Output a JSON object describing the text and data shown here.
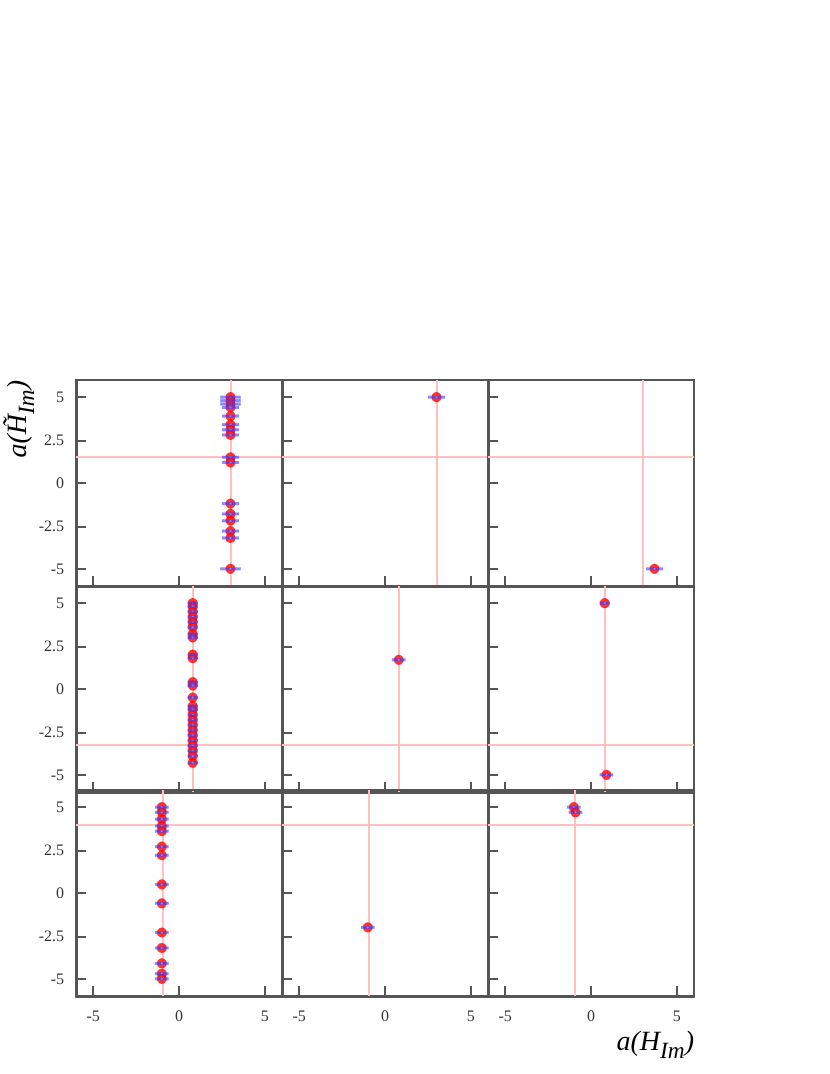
{
  "chart_data": [
    {
      "type": "scatter",
      "ylabel": "a(H̃$_{Im}$)",
      "marker": "circle",
      "grid": false,
      "tick_labels": "y",
      "xlim": [
        -6,
        6
      ],
      "ylim": [
        -6,
        6
      ],
      "xticks": [
        -5,
        0,
        5
      ],
      "yticks": [
        -5,
        -2.5,
        0,
        2.5,
        5
      ],
      "ref_lines": [
        {
          "axis": "x",
          "value": 3,
          "color": "#ffc0c0"
        },
        {
          "axis": "y",
          "value": 1.6,
          "color": "#ffc0c0"
        }
      ],
      "series": [
        {
          "color": "#ff0000",
          "x": [
            3,
            3,
            3,
            3,
            3,
            3,
            3,
            3,
            3,
            3,
            3,
            3,
            3,
            3,
            3,
            3
          ],
          "values": [
            5,
            4.8,
            4.6,
            4.4,
            3.9,
            3.4,
            3.1,
            2.8,
            1.5,
            1.2,
            -1.2,
            -1.8,
            -2.2,
            -2.8,
            -3.2,
            -5
          ],
          "xerrors": [
            0.6,
            0.6,
            0.6,
            0.5,
            0.5,
            0.5,
            0.5,
            0.5,
            0.5,
            0.5,
            0.5,
            0.5,
            0.5,
            0.5,
            0.5,
            0.6
          ]
        }
      ]
    },
    {
      "type": "scatter",
      "marker": "circle",
      "grid": false,
      "tick_labels": false,
      "xlim": [
        -6,
        6
      ],
      "ylim": [
        -6,
        6
      ],
      "xticks": [
        -5,
        0,
        5
      ],
      "yticks": [
        -5,
        -2.5,
        0,
        2.5,
        5
      ],
      "ref_lines": [
        {
          "axis": "x",
          "value": 3,
          "color": "#ffc0c0"
        },
        {
          "axis": "y",
          "value": 1.6,
          "color": "#ffc0c0"
        }
      ],
      "series": [
        {
          "color": "#ff0000",
          "x": [
            3
          ],
          "values": [
            5
          ],
          "xerrors": [
            0.5
          ]
        }
      ]
    },
    {
      "type": "scatter",
      "marker": "circle",
      "grid": false,
      "tick_labels": false,
      "xlim": [
        -6,
        6
      ],
      "ylim": [
        -6,
        6
      ],
      "xticks": [
        -5,
        0,
        5
      ],
      "yticks": [
        -5,
        -2.5,
        0,
        2.5,
        5
      ],
      "ref_lines": [
        {
          "axis": "x",
          "value": 3,
          "color": "#ffc0c0"
        },
        {
          "axis": "y",
          "value": 1.6,
          "color": "#ffc0c0"
        }
      ],
      "series": [
        {
          "color": "#ff0000",
          "x": [
            3.7
          ],
          "values": [
            -5
          ],
          "xerrors": [
            0.5
          ]
        }
      ]
    },
    {
      "type": "scatter",
      "marker": "circle",
      "grid": false,
      "tick_labels": "y",
      "xlim": [
        -6,
        6
      ],
      "ylim": [
        -6,
        6
      ],
      "xticks": [
        -5,
        0,
        5
      ],
      "yticks": [
        -5,
        -2.5,
        0,
        2.5,
        5
      ],
      "ref_lines": [
        {
          "axis": "x",
          "value": 0.8,
          "color": "#ffc0c0"
        },
        {
          "axis": "y",
          "value": -3.2,
          "color": "#ffc0c0"
        }
      ],
      "series": [
        {
          "color": "#ff0000",
          "x": [
            0.8,
            0.8,
            0.8,
            0.8,
            0.8,
            0.8,
            0.8,
            0.8,
            0.8,
            0.8,
            0.8,
            0.8,
            0.8,
            0.8,
            0.8,
            0.8,
            0.8,
            0.8,
            0.8,
            0.8,
            0.8,
            0.8,
            0.8,
            0.8,
            0.8
          ],
          "values": [
            5,
            4.8,
            4.5,
            4.2,
            3.9,
            3.6,
            3.2,
            3,
            2,
            1.8,
            0.4,
            0.2,
            -0.5,
            -1,
            -1.2,
            -1.5,
            -1.8,
            -2.1,
            -2.4,
            -2.7,
            -3,
            -3.3,
            -3.6,
            -3.9,
            -4.3
          ],
          "xerrors": [
            0.3,
            0.3,
            0.3,
            0.3,
            0.3,
            0.3,
            0.3,
            0.3,
            0.3,
            0.3,
            0.3,
            0.3,
            0.3,
            0.3,
            0.3,
            0.3,
            0.3,
            0.3,
            0.3,
            0.3,
            0.3,
            0.3,
            0.3,
            0.3,
            0.3
          ]
        }
      ]
    },
    {
      "type": "scatter",
      "marker": "circle",
      "grid": false,
      "tick_labels": false,
      "xlim": [
        -6,
        6
      ],
      "ylim": [
        -6,
        6
      ],
      "xticks": [
        -5,
        0,
        5
      ],
      "yticks": [
        -5,
        -2.5,
        0,
        2.5,
        5
      ],
      "ref_lines": [
        {
          "axis": "x",
          "value": 0.8,
          "color": "#ffc0c0"
        },
        {
          "axis": "y",
          "value": -3.2,
          "color": "#ffc0c0"
        }
      ],
      "series": [
        {
          "color": "#ff0000",
          "x": [
            0.8
          ],
          "values": [
            1.7
          ],
          "xerrors": [
            0.4
          ]
        }
      ]
    },
    {
      "type": "scatter",
      "marker": "circle",
      "grid": false,
      "tick_labels": false,
      "xlim": [
        -6,
        6
      ],
      "ylim": [
        -6,
        6
      ],
      "xticks": [
        -5,
        0,
        5
      ],
      "yticks": [
        -5,
        -2.5,
        0,
        2.5,
        5
      ],
      "ref_lines": [
        {
          "axis": "x",
          "value": 0.8,
          "color": "#ffc0c0"
        },
        {
          "axis": "y",
          "value": -3.2,
          "color": "#ffc0c0"
        }
      ],
      "series": [
        {
          "color": "#ff0000",
          "x": [
            0.8,
            0.9
          ],
          "values": [
            5,
            -5
          ],
          "xerrors": [
            0.3,
            0.4
          ]
        }
      ]
    },
    {
      "type": "scatter",
      "marker": "circle",
      "grid": false,
      "xlim": [
        -6,
        6
      ],
      "ylim": [
        -6,
        6
      ],
      "xticks": [
        -5,
        0,
        5
      ],
      "yticks": [
        -5,
        -2.5,
        0,
        2.5,
        5
      ],
      "ref_lines": [
        {
          "axis": "x",
          "value": -1,
          "color": "#ffc0c0"
        },
        {
          "axis": "y",
          "value": 4,
          "color": "#ffc0c0"
        }
      ],
      "series": [
        {
          "color": "#ff0000",
          "x": [
            -1,
            -1,
            -1,
            -1,
            -1,
            -1,
            -1,
            -1,
            -1,
            -1,
            -1,
            -1,
            -1,
            -1
          ],
          "values": [
            5,
            4.7,
            4.3,
            3.9,
            3.6,
            2.7,
            2.2,
            0.5,
            -0.6,
            -2.3,
            -3.2,
            -4.1,
            -4.7,
            -5
          ],
          "xerrors": [
            0.4,
            0.4,
            0.4,
            0.4,
            0.4,
            0.4,
            0.4,
            0.4,
            0.4,
            0.4,
            0.4,
            0.4,
            0.4,
            0.4
          ]
        }
      ]
    },
    {
      "type": "scatter",
      "marker": "circle",
      "grid": false,
      "tick_labels": "x",
      "xlim": [
        -6,
        6
      ],
      "ylim": [
        -6,
        6
      ],
      "xticks": [
        -5,
        0,
        5
      ],
      "yticks": [
        -5,
        -2.5,
        0,
        2.5,
        5
      ],
      "ref_lines": [
        {
          "axis": "x",
          "value": -1,
          "color": "#ffc0c0"
        },
        {
          "axis": "y",
          "value": 4,
          "color": "#ffc0c0"
        }
      ],
      "series": [
        {
          "color": "#ff0000",
          "x": [
            -1
          ],
          "values": [
            -2
          ],
          "xerrors": [
            0.4
          ]
        }
      ]
    },
    {
      "type": "scatter",
      "xlabel": "a(H$_{Im}$)",
      "marker": "circle",
      "grid": false,
      "tick_labels": "x",
      "xlim": [
        -6,
        6
      ],
      "ylim": [
        -6,
        6
      ],
      "xticks": [
        -5,
        0,
        5
      ],
      "yticks": [
        -5,
        -2.5,
        0,
        2.5,
        5
      ],
      "ref_lines": [
        {
          "axis": "x",
          "value": -1,
          "color": "#ffc0c0"
        },
        {
          "axis": "y",
          "value": 4,
          "color": "#ffc0c0"
        }
      ],
      "series": [
        {
          "color": "#ff0000",
          "x": [
            -1,
            -0.9
          ],
          "values": [
            5,
            4.7
          ],
          "xerrors": [
            0.4,
            0.4
          ]
        }
      ]
    }
  ]
}
